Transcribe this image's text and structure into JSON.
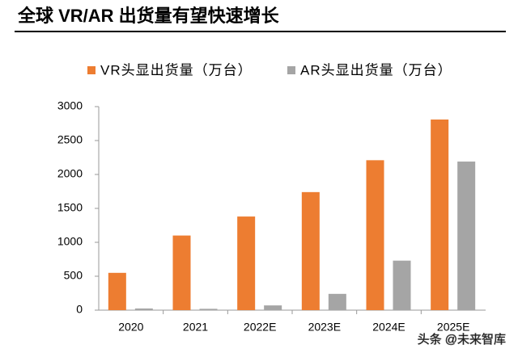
{
  "chart_data": {
    "type": "bar",
    "title": "全球 VR/AR 出货量有望快速增长",
    "categories": [
      "2020",
      "2021",
      "2022E",
      "2023E",
      "2024E",
      "2025E"
    ],
    "series": [
      {
        "name": "VR头显出货量（万台）",
        "color": "#ed7d31",
        "values": [
          550,
          1100,
          1380,
          1740,
          2210,
          2810
        ]
      },
      {
        "name": "AR头显出货量（万台）",
        "color": "#a5a5a5",
        "values": [
          25,
          20,
          70,
          240,
          730,
          2190
        ]
      }
    ],
    "ylim": [
      0,
      3000
    ],
    "yticks": [
      0,
      500,
      1000,
      1500,
      2000,
      2500,
      3000
    ],
    "grid": false,
    "legend": "top"
  },
  "watermark": "头条 @未来智库"
}
